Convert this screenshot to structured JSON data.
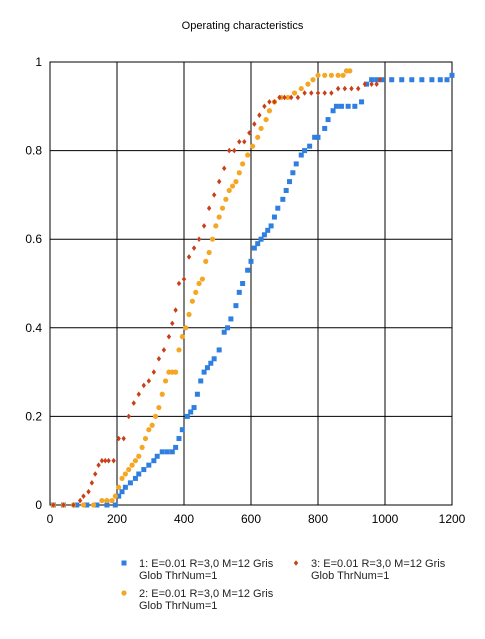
{
  "chart_data": {
    "type": "scatter",
    "title": "Operating characteristics",
    "xlim": [
      0,
      1200
    ],
    "ylim": [
      0,
      1
    ],
    "xticks": [
      "0",
      "200",
      "400",
      "600",
      "800",
      "1000",
      "1200"
    ],
    "yticks": [
      "0",
      "0.2",
      "0.4",
      "0.6",
      "0.8",
      "1"
    ],
    "grid": true,
    "legend_position": "bottom",
    "series": [
      {
        "name": "1: E=0.01 R=3,0 M=12 Gris Glob ThrNum=1",
        "color": "#2f7fe0",
        "marker": "square",
        "points": [
          [
            10,
            0
          ],
          [
            40,
            0
          ],
          [
            80,
            0
          ],
          [
            110,
            0
          ],
          [
            140,
            0
          ],
          [
            170,
            0
          ],
          [
            195,
            0
          ],
          [
            205,
            0.02
          ],
          [
            215,
            0.03
          ],
          [
            225,
            0.04
          ],
          [
            240,
            0.05
          ],
          [
            255,
            0.06
          ],
          [
            265,
            0.07
          ],
          [
            280,
            0.08
          ],
          [
            295,
            0.09
          ],
          [
            310,
            0.1
          ],
          [
            320,
            0.11
          ],
          [
            335,
            0.12
          ],
          [
            350,
            0.12
          ],
          [
            365,
            0.12
          ],
          [
            375,
            0.13
          ],
          [
            385,
            0.15
          ],
          [
            395,
            0.17
          ],
          [
            410,
            0.2
          ],
          [
            420,
            0.21
          ],
          [
            430,
            0.22
          ],
          [
            440,
            0.25
          ],
          [
            450,
            0.28
          ],
          [
            460,
            0.3
          ],
          [
            470,
            0.31
          ],
          [
            480,
            0.32
          ],
          [
            490,
            0.33
          ],
          [
            505,
            0.35
          ],
          [
            520,
            0.39
          ],
          [
            530,
            0.4
          ],
          [
            540,
            0.42
          ],
          [
            555,
            0.45
          ],
          [
            565,
            0.48
          ],
          [
            575,
            0.5
          ],
          [
            590,
            0.53
          ],
          [
            600,
            0.55
          ],
          [
            610,
            0.58
          ],
          [
            620,
            0.59
          ],
          [
            630,
            0.6
          ],
          [
            640,
            0.61
          ],
          [
            650,
            0.62
          ],
          [
            660,
            0.63
          ],
          [
            670,
            0.65
          ],
          [
            680,
            0.67
          ],
          [
            695,
            0.69
          ],
          [
            705,
            0.71
          ],
          [
            715,
            0.73
          ],
          [
            725,
            0.75
          ],
          [
            735,
            0.77
          ],
          [
            750,
            0.79
          ],
          [
            760,
            0.8
          ],
          [
            775,
            0.81
          ],
          [
            790,
            0.83
          ],
          [
            800,
            0.83
          ],
          [
            820,
            0.85
          ],
          [
            830,
            0.87
          ],
          [
            845,
            0.89
          ],
          [
            855,
            0.9
          ],
          [
            870,
            0.9
          ],
          [
            890,
            0.9
          ],
          [
            910,
            0.9
          ],
          [
            930,
            0.91
          ],
          [
            945,
            0.95
          ],
          [
            960,
            0.96
          ],
          [
            975,
            0.96
          ],
          [
            990,
            0.96
          ],
          [
            1020,
            0.96
          ],
          [
            1050,
            0.96
          ],
          [
            1080,
            0.96
          ],
          [
            1110,
            0.96
          ],
          [
            1140,
            0.96
          ],
          [
            1165,
            0.96
          ],
          [
            1185,
            0.96
          ],
          [
            1200,
            0.97
          ]
        ]
      },
      {
        "name": "2: E=0.01 R=3,0 M=12 Gris Glob ThrNum=1",
        "color": "#f5a623",
        "marker": "circle",
        "points": [
          [
            10,
            0
          ],
          [
            40,
            0
          ],
          [
            70,
            0
          ],
          [
            100,
            0
          ],
          [
            130,
            0
          ],
          [
            155,
            0.01
          ],
          [
            170,
            0.01
          ],
          [
            185,
            0.01
          ],
          [
            195,
            0.02
          ],
          [
            205,
            0.04
          ],
          [
            215,
            0.06
          ],
          [
            225,
            0.07
          ],
          [
            235,
            0.08
          ],
          [
            245,
            0.09
          ],
          [
            255,
            0.1
          ],
          [
            265,
            0.11
          ],
          [
            275,
            0.13
          ],
          [
            285,
            0.15
          ],
          [
            295,
            0.17
          ],
          [
            305,
            0.18
          ],
          [
            315,
            0.2
          ],
          [
            325,
            0.22
          ],
          [
            335,
            0.25
          ],
          [
            345,
            0.28
          ],
          [
            355,
            0.3
          ],
          [
            365,
            0.3
          ],
          [
            375,
            0.3
          ],
          [
            385,
            0.35
          ],
          [
            395,
            0.38
          ],
          [
            405,
            0.4
          ],
          [
            415,
            0.43
          ],
          [
            425,
            0.46
          ],
          [
            435,
            0.48
          ],
          [
            445,
            0.5
          ],
          [
            455,
            0.51
          ],
          [
            465,
            0.55
          ],
          [
            475,
            0.57
          ],
          [
            485,
            0.6
          ],
          [
            495,
            0.63
          ],
          [
            505,
            0.65
          ],
          [
            515,
            0.67
          ],
          [
            525,
            0.69
          ],
          [
            535,
            0.71
          ],
          [
            545,
            0.72
          ],
          [
            555,
            0.73
          ],
          [
            565,
            0.75
          ],
          [
            575,
            0.77
          ],
          [
            590,
            0.79
          ],
          [
            605,
            0.81
          ],
          [
            620,
            0.83
          ],
          [
            630,
            0.85
          ],
          [
            645,
            0.87
          ],
          [
            655,
            0.89
          ],
          [
            670,
            0.91
          ],
          [
            690,
            0.92
          ],
          [
            710,
            0.92
          ],
          [
            730,
            0.93
          ],
          [
            750,
            0.94
          ],
          [
            770,
            0.95
          ],
          [
            785,
            0.96
          ],
          [
            800,
            0.97
          ],
          [
            820,
            0.97
          ],
          [
            840,
            0.97
          ],
          [
            860,
            0.97
          ],
          [
            875,
            0.97
          ],
          [
            885,
            0.98
          ],
          [
            895,
            0.98
          ]
        ]
      },
      {
        "name": "3: E=0.01 R=3,0 M=12 Gris Glob ThrNum=1",
        "color": "#c8401a",
        "marker": "diamond",
        "points": [
          [
            10,
            0
          ],
          [
            40,
            0
          ],
          [
            70,
            0
          ],
          [
            90,
            0.01
          ],
          [
            100,
            0.02
          ],
          [
            115,
            0.03
          ],
          [
            125,
            0.05
          ],
          [
            135,
            0.07
          ],
          [
            145,
            0.09
          ],
          [
            155,
            0.1
          ],
          [
            165,
            0.1
          ],
          [
            175,
            0.1
          ],
          [
            190,
            0.1
          ],
          [
            205,
            0.15
          ],
          [
            220,
            0.15
          ],
          [
            235,
            0.2
          ],
          [
            250,
            0.23
          ],
          [
            265,
            0.25
          ],
          [
            280,
            0.27
          ],
          [
            295,
            0.28
          ],
          [
            310,
            0.3
          ],
          [
            325,
            0.33
          ],
          [
            340,
            0.35
          ],
          [
            355,
            0.38
          ],
          [
            365,
            0.41
          ],
          [
            375,
            0.44
          ],
          [
            385,
            0.5
          ],
          [
            400,
            0.51
          ],
          [
            415,
            0.56
          ],
          [
            430,
            0.58
          ],
          [
            445,
            0.6
          ],
          [
            460,
            0.63
          ],
          [
            475,
            0.67
          ],
          [
            490,
            0.7
          ],
          [
            505,
            0.73
          ],
          [
            520,
            0.76
          ],
          [
            535,
            0.8
          ],
          [
            550,
            0.8
          ],
          [
            565,
            0.82
          ],
          [
            580,
            0.82
          ],
          [
            595,
            0.84
          ],
          [
            610,
            0.86
          ],
          [
            625,
            0.88
          ],
          [
            640,
            0.9
          ],
          [
            655,
            0.91
          ],
          [
            670,
            0.91
          ],
          [
            685,
            0.92
          ],
          [
            700,
            0.92
          ],
          [
            720,
            0.92
          ],
          [
            740,
            0.92
          ],
          [
            760,
            0.93
          ],
          [
            780,
            0.93
          ],
          [
            800,
            0.93
          ],
          [
            820,
            0.93
          ],
          [
            840,
            0.93
          ],
          [
            860,
            0.94
          ],
          [
            880,
            0.94
          ],
          [
            900,
            0.94
          ],
          [
            920,
            0.94
          ],
          [
            940,
            0.95
          ],
          [
            960,
            0.95
          ],
          [
            975,
            0.95
          ],
          [
            985,
            0.96
          ]
        ]
      }
    ]
  }
}
